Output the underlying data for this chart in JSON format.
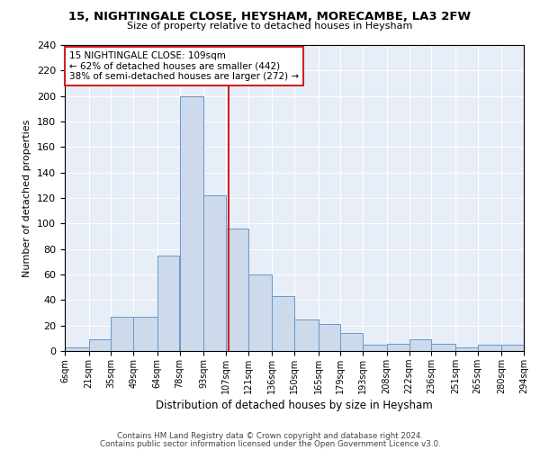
{
  "title": "15, NIGHTINGALE CLOSE, HEYSHAM, MORECAMBE, LA3 2FW",
  "subtitle": "Size of property relative to detached houses in Heysham",
  "xlabel": "Distribution of detached houses by size in Heysham",
  "ylabel": "Number of detached properties",
  "bar_color": "#ccdaeb",
  "bar_edge_color": "#6699cc",
  "bins": [
    6,
    21,
    35,
    49,
    64,
    78,
    93,
    107,
    121,
    136,
    150,
    165,
    179,
    193,
    208,
    222,
    236,
    251,
    265,
    280,
    294
  ],
  "values": [
    3,
    9,
    27,
    27,
    75,
    200,
    122,
    96,
    60,
    43,
    25,
    21,
    14,
    5,
    6,
    9,
    6,
    3,
    5,
    5
  ],
  "tick_labels": [
    "6sqm",
    "21sqm",
    "35sqm",
    "49sqm",
    "64sqm",
    "78sqm",
    "93sqm",
    "107sqm",
    "121sqm",
    "136sqm",
    "150sqm",
    "165sqm",
    "179sqm",
    "193sqm",
    "208sqm",
    "222sqm",
    "236sqm",
    "251sqm",
    "265sqm",
    "280sqm",
    "294sqm"
  ],
  "vline_x": 109,
  "vline_color": "#cc2222",
  "annotation_text": "15 NIGHTINGALE CLOSE: 109sqm\n← 62% of detached houses are smaller (442)\n38% of semi-detached houses are larger (272) →",
  "annotation_box_color": "#ffffff",
  "annotation_box_edge": "#cc2222",
  "footer1": "Contains HM Land Registry data © Crown copyright and database right 2024.",
  "footer2": "Contains public sector information licensed under the Open Government Licence v3.0.",
  "background_color": "#e8eef8",
  "ylim": [
    0,
    240
  ],
  "yticks": [
    0,
    20,
    40,
    60,
    80,
    100,
    120,
    140,
    160,
    180,
    200,
    220,
    240
  ]
}
